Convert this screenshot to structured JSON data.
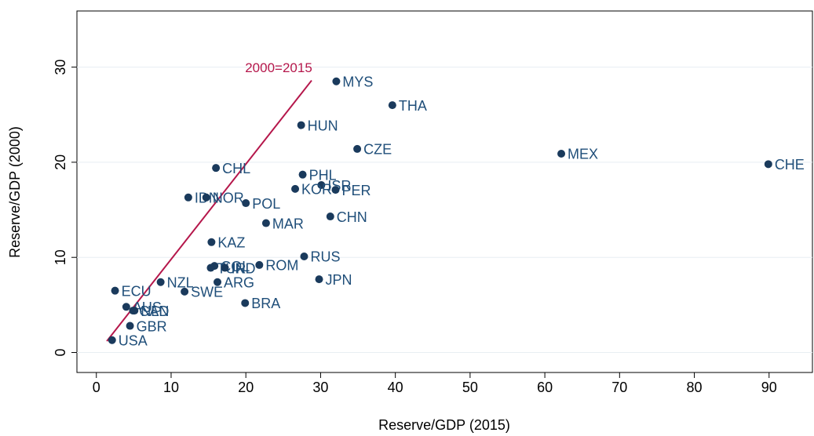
{
  "chart_data": {
    "type": "scatter",
    "x_label": "Reserve/GDP (2015)",
    "y_label": "Reserve/GDP (2000)",
    "xlim": [
      -2.6,
      95.8
    ],
    "ylim": [
      -2.1,
      35.9
    ],
    "xticks": [
      0,
      10,
      20,
      30,
      40,
      50,
      60,
      70,
      80,
      90
    ],
    "yticks": [
      0,
      10,
      20,
      30
    ],
    "grid": true,
    "color": "#1a3a5c",
    "points": {
      "labels": [
        "MYS",
        "THA",
        "HUN",
        "CZE",
        "MEX",
        "CHE",
        "CHL",
        "PHL",
        "ISR",
        "KOR",
        "PER",
        "IDN",
        "NOR",
        "POL",
        "CHN",
        "MAR",
        "KAZ",
        "RUS",
        "ROM",
        "COL",
        "TUR",
        "IND",
        "NZL",
        "ARG",
        "JPN",
        "ECU",
        "SWE",
        "AUS",
        "CAN",
        "NLD",
        "BRA",
        "GBR",
        "USA"
      ],
      "x": [
        32.1,
        39.6,
        27.4,
        34.9,
        62.2,
        89.9,
        16.0,
        27.6,
        30.1,
        26.6,
        32.0,
        12.3,
        14.7,
        20.0,
        31.3,
        22.7,
        15.4,
        27.8,
        21.8,
        15.8,
        15.3,
        17.2,
        8.6,
        16.2,
        29.8,
        2.5,
        11.8,
        4.0,
        4.9,
        5.1,
        19.9,
        4.5,
        2.1
      ],
      "y": [
        28.5,
        26.0,
        23.9,
        21.4,
        20.9,
        19.8,
        19.4,
        18.7,
        17.6,
        17.2,
        17.1,
        16.3,
        16.3,
        15.7,
        14.3,
        13.6,
        11.6,
        10.1,
        9.2,
        9.1,
        8.9,
        8.9,
        7.4,
        7.4,
        7.7,
        6.5,
        6.4,
        4.8,
        4.4,
        4.4,
        5.2,
        2.8,
        1.3
      ]
    },
    "reference_line": {
      "label": "2000=2015",
      "color": "#b5174b",
      "x": [
        1.4,
        28.8
      ],
      "y": [
        1.2,
        28.6
      ]
    }
  }
}
